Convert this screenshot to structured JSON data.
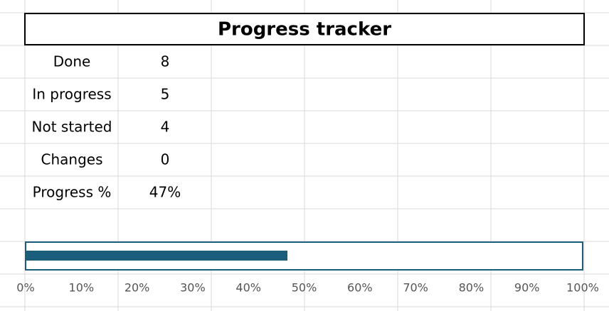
{
  "title": "Progress tracker",
  "table": {
    "rows": [
      [
        "Done",
        "8"
      ],
      [
        "In progress",
        "5"
      ],
      [
        "Not started",
        "4"
      ],
      [
        "Changes",
        "0"
      ],
      [
        "Progress %",
        "47%"
      ]
    ]
  },
  "chart_data": {
    "type": "bar",
    "values": [
      47
    ],
    "color": "#1b5e7b",
    "xlim": [
      0,
      100
    ],
    "xticks": [
      {
        "value": 0,
        "label": "0%"
      },
      {
        "value": 10,
        "label": "10%"
      },
      {
        "value": 20,
        "label": "20%"
      },
      {
        "value": 30,
        "label": "30%"
      },
      {
        "value": 40,
        "label": "40%"
      },
      {
        "value": 50,
        "label": "50%"
      },
      {
        "value": 60,
        "label": "60%"
      },
      {
        "value": 70,
        "label": "70%"
      },
      {
        "value": 80,
        "label": "80%"
      },
      {
        "value": 90,
        "label": "90%"
      },
      {
        "value": 100,
        "label": "100%"
      }
    ]
  }
}
